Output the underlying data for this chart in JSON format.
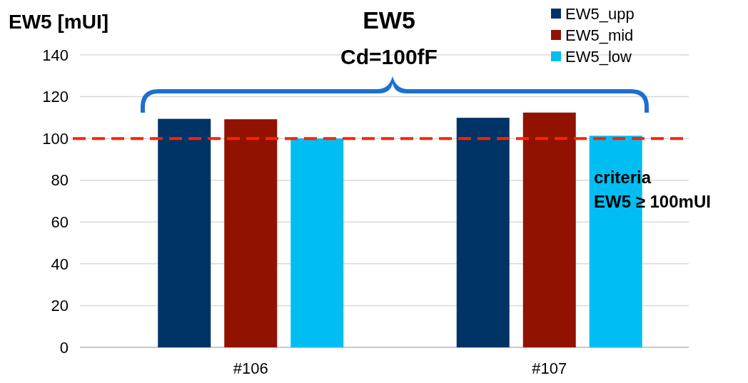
{
  "chart_data": {
    "type": "bar",
    "title": "EW5",
    "subtitle": "Cd=100fF",
    "ylabel": "EW5 [mUI]",
    "categories": [
      "#106",
      "#107"
    ],
    "series": [
      {
        "name": "EW5_upp",
        "color": "#003366",
        "values": [
          109.4,
          109.9
        ]
      },
      {
        "name": "EW5_mid",
        "color": "#921200",
        "values": [
          109.2,
          112.4
        ]
      },
      {
        "name": "EW5_low",
        "color": "#00bef2",
        "values": [
          100,
          101.3
        ]
      }
    ],
    "ylim": [
      0,
      140
    ],
    "yticks": [
      0,
      20,
      40,
      60,
      80,
      100,
      120,
      140
    ],
    "grid": "y",
    "legend": "top right",
    "ref_lines": [
      {
        "axis": "y",
        "value": 100,
        "color": "#ff2200",
        "line_style": "dashed"
      }
    ],
    "annotations": [
      "criteria",
      "EW5 ≥ 100mUI"
    ]
  }
}
